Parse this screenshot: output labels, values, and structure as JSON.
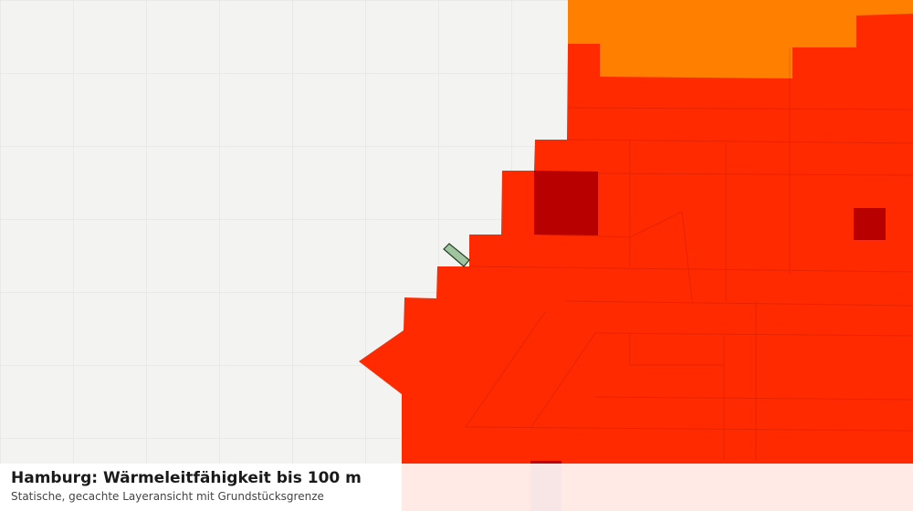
{
  "title": "Hamburg: Wärmeleitfähigkeit bis 100 m",
  "subtitle": "Statische, gecachte Layeransicht mit Grundstücksgrenze"
}
